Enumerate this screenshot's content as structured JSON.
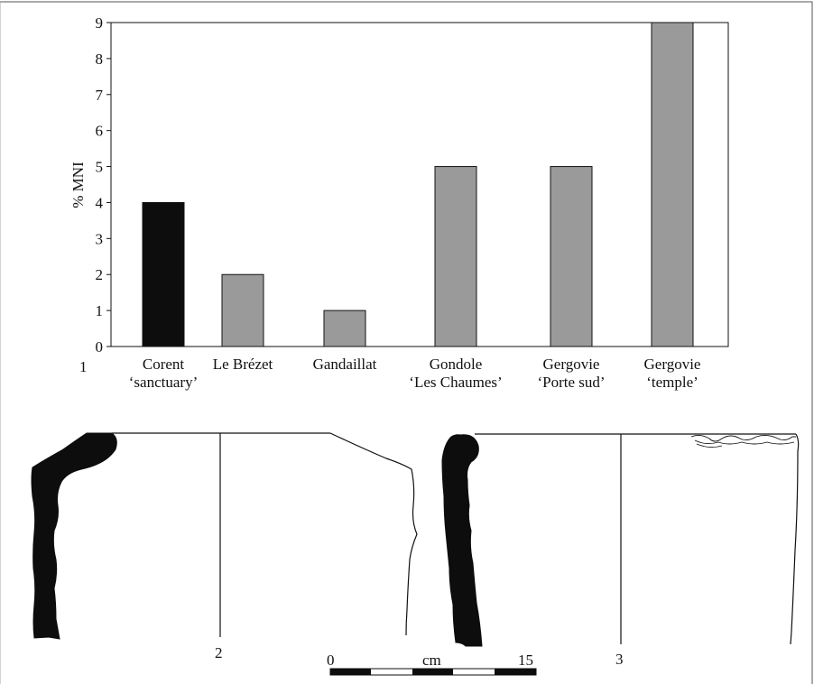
{
  "chart_data": {
    "type": "bar",
    "ylabel": "% MNI",
    "xlabel": "",
    "ylim": [
      0,
      9
    ],
    "yticks": [
      0,
      1,
      2,
      3,
      4,
      5,
      6,
      7,
      8,
      9
    ],
    "categories": [
      [
        "Corent",
        "‘sanctuary’"
      ],
      [
        "Le Brézet"
      ],
      [
        "Gandaillat"
      ],
      [
        "Gondole",
        "‘Les Chaumes’"
      ],
      [
        "Gergovie",
        "‘Porte sud’"
      ],
      [
        "Gergovie",
        "‘temple’"
      ]
    ],
    "values": [
      4,
      2,
      1,
      5,
      5,
      9
    ],
    "bar_colors": [
      "#0d0d0d",
      "#9a9a9a",
      "#9a9a9a",
      "#9a9a9a",
      "#9a9a9a",
      "#9a9a9a"
    ],
    "grid": false,
    "legend": "none"
  },
  "figure_labels": {
    "panel_1": "1",
    "panel_2": "2",
    "panel_3": "3"
  },
  "scale_bar": {
    "start_label": "0",
    "unit_label": "cm",
    "end_label": "15"
  },
  "colors": {
    "ink": "#0d0d0d",
    "bar_grey": "#9a9a9a",
    "frame": "#555555"
  }
}
